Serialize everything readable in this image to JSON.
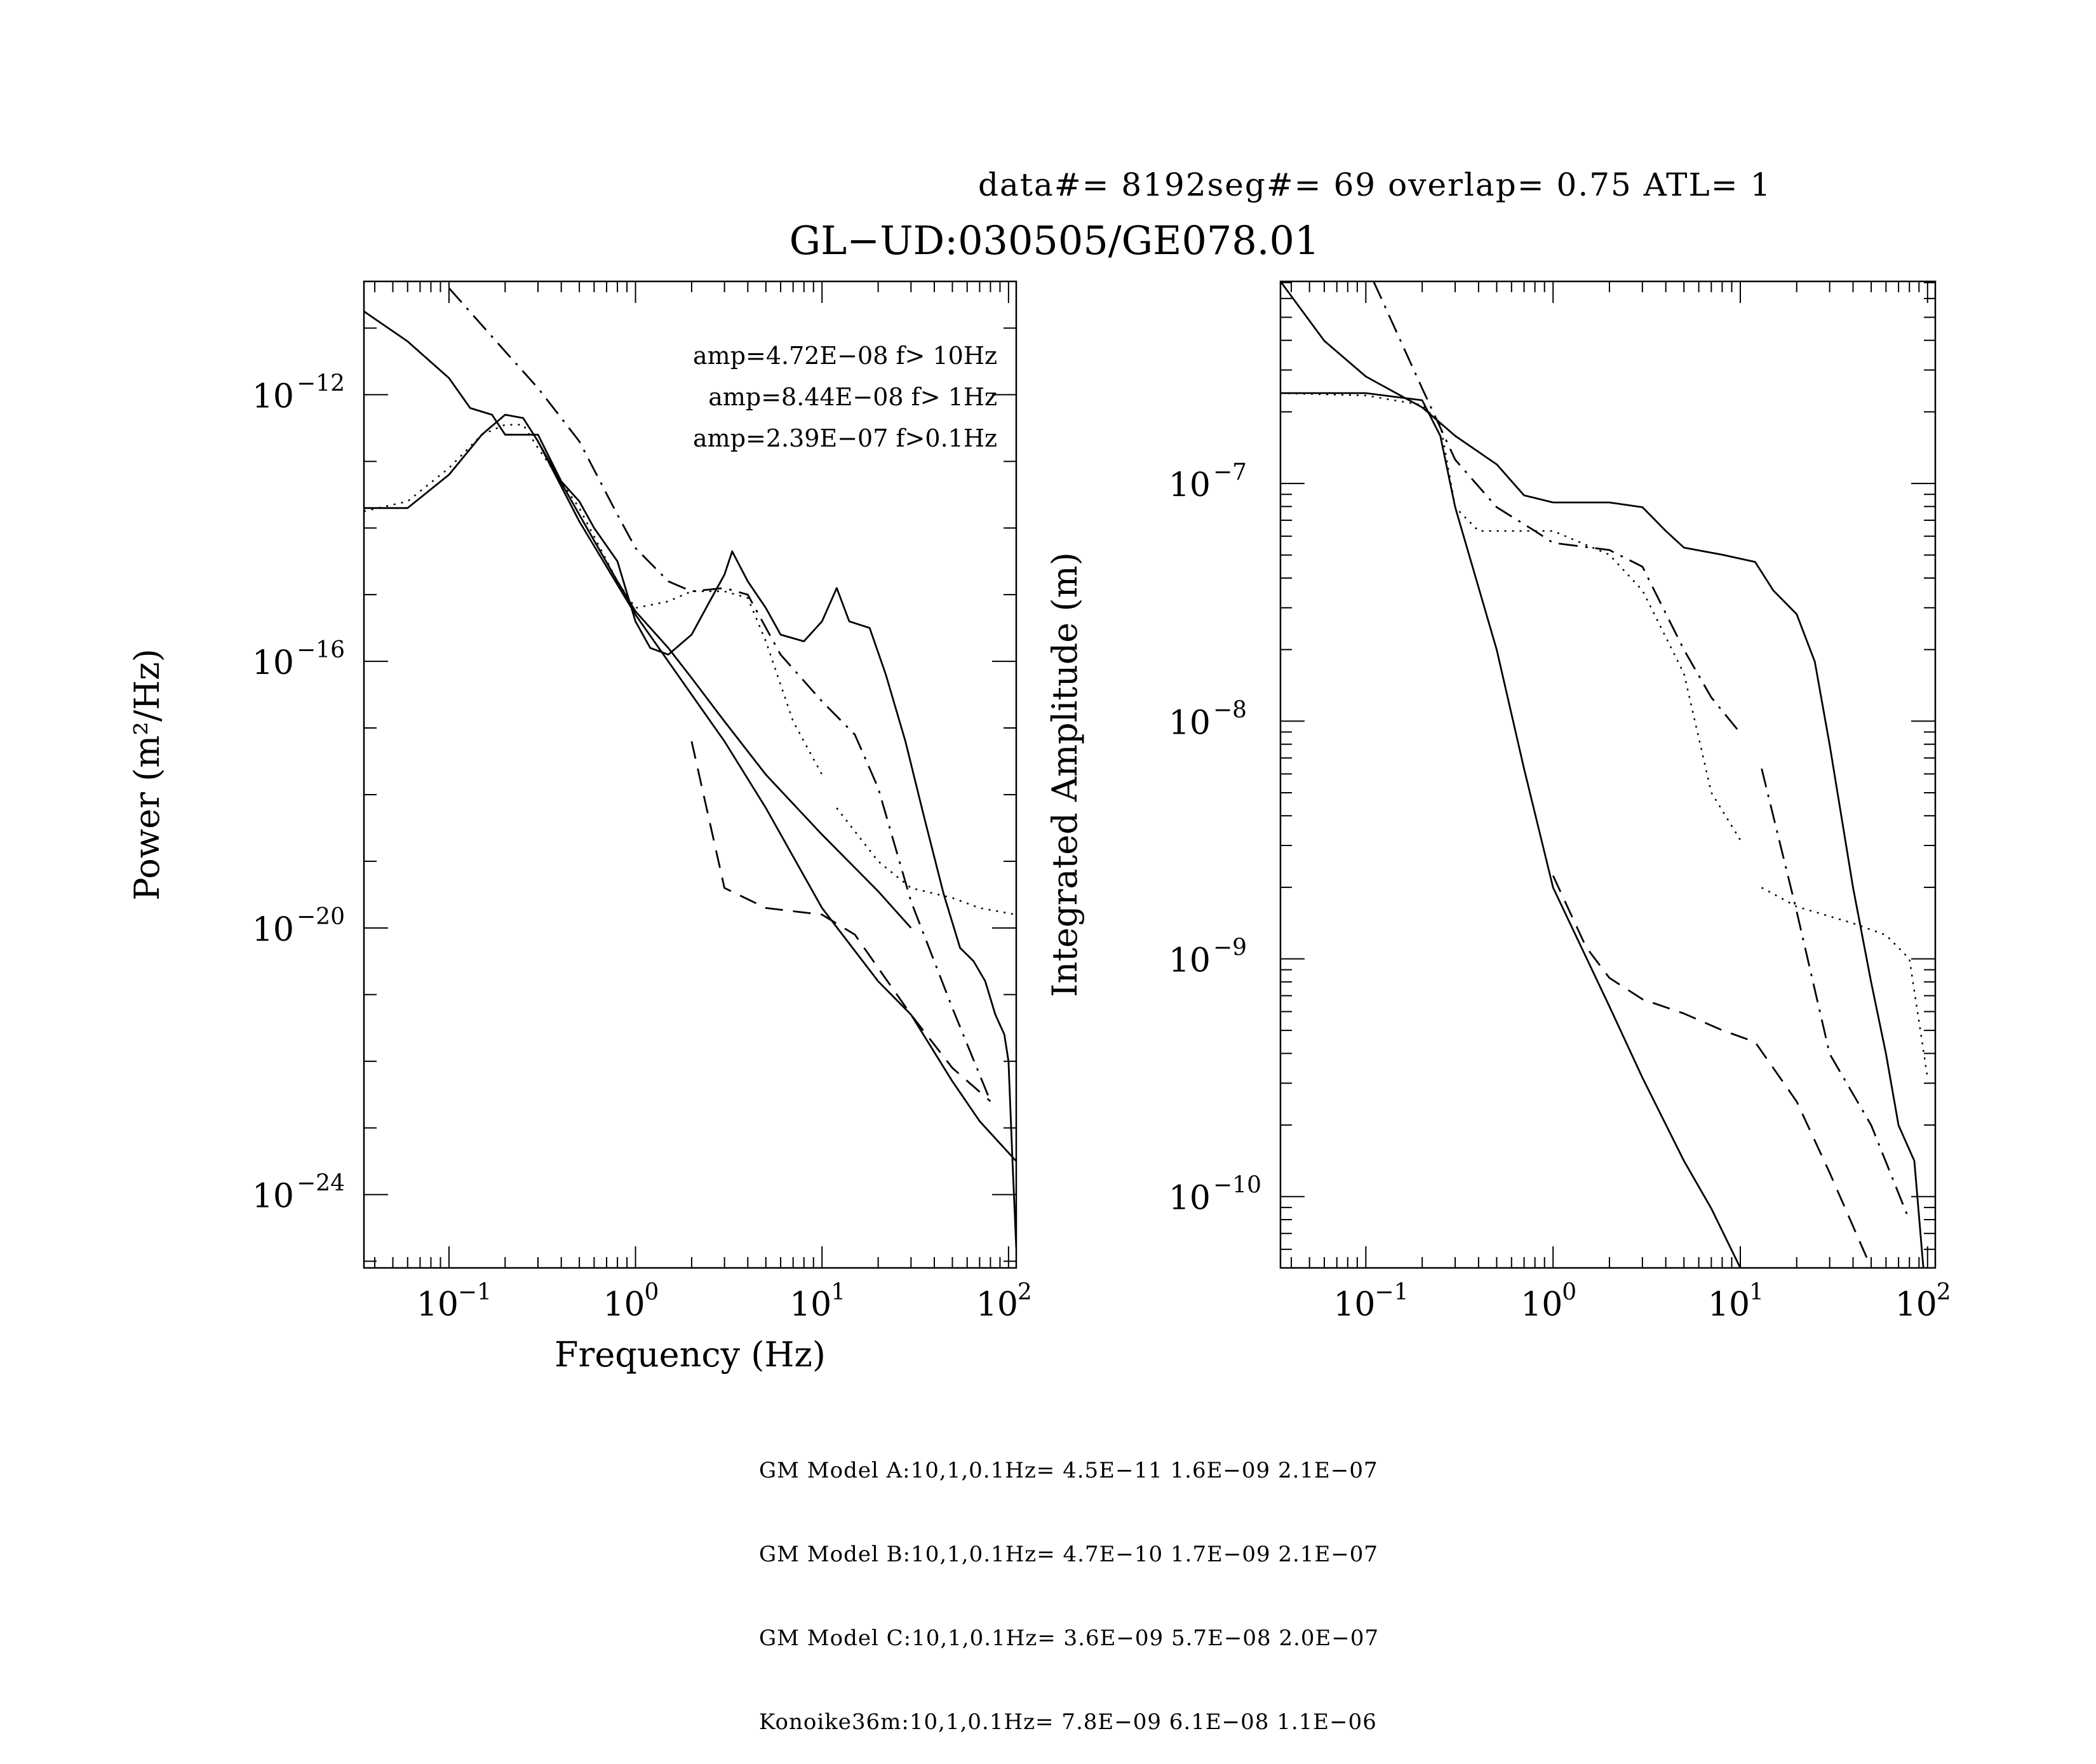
{
  "header": {
    "run_info": "data#= 8192seg#= 69 overlap=  0.75 ATL= 1",
    "title": "GL−UD:030505/GE078.01"
  },
  "footer": {
    "lines": [
      "GM Model A:10,1,0.1Hz= 4.5E−11 1.6E−09 2.1E−07",
      "GM Model B:10,1,0.1Hz= 4.7E−10 1.7E−09 2.1E−07",
      "GM Model C:10,1,0.1Hz= 3.6E−09 5.7E−08 2.0E−07",
      "Konoike36m:10,1,0.1Hz= 7.8E−09 6.1E−08 1.1E−06"
    ]
  },
  "chart_data": [
    {
      "type": "line",
      "xlabel": "Frequency (Hz)",
      "ylabel": "Power (m²/Hz)",
      "xscale": "log",
      "yscale": "log",
      "xlim": [
        0.035,
        110
      ],
      "ylim_log10": [
        -25.1,
        -10.3
      ],
      "xtick_exponents": [
        -1,
        0,
        1,
        2
      ],
      "ytick_exponents": [
        -12,
        -16,
        -20,
        -24
      ],
      "annotations": [
        "amp=4.72E−08 f> 10Hz",
        "amp=8.44E−08 f>  1Hz",
        "amp=2.39E−07 f>0.1Hz"
      ],
      "series": [
        {
          "style": "dotted",
          "points": [
            [
              0.035,
              -13.75
            ],
            [
              0.06,
              -13.6
            ],
            [
              0.1,
              -13.1
            ],
            [
              0.15,
              -12.6
            ],
            [
              0.2,
              -12.45
            ],
            [
              0.25,
              -12.45
            ],
            [
              0.3,
              -12.8
            ],
            [
              0.5,
              -13.7
            ],
            [
              0.8,
              -14.8
            ],
            [
              1.0,
              -15.2
            ],
            [
              1.5,
              -15.1
            ],
            [
              2.0,
              -14.95
            ],
            [
              3.0,
              -14.95
            ],
            [
              4.0,
              -15.05
            ],
            [
              5.0,
              -15.7
            ],
            [
              7.0,
              -16.9
            ],
            [
              10.0,
              -17.7
            ]
          ]
        },
        {
          "style": "dotted",
          "points": [
            [
              12.0,
              -18.2
            ],
            [
              20.0,
              -19.0
            ],
            [
              30.0,
              -19.4
            ],
            [
              50.0,
              -19.55
            ],
            [
              70.0,
              -19.7
            ],
            [
              110.0,
              -19.8
            ]
          ]
        },
        {
          "style": "solid",
          "points": [
            [
              0.035,
              -13.7
            ],
            [
              0.06,
              -13.7
            ],
            [
              0.1,
              -13.2
            ],
            [
              0.15,
              -12.6
            ],
            [
              0.2,
              -12.3
            ],
            [
              0.25,
              -12.35
            ],
            [
              0.3,
              -12.7
            ],
            [
              0.5,
              -13.8
            ],
            [
              0.8,
              -14.8
            ],
            [
              1.0,
              -15.25
            ],
            [
              1.5,
              -15.8
            ],
            [
              2.0,
              -16.25
            ],
            [
              3.0,
              -16.9
            ],
            [
              5.0,
              -17.7
            ],
            [
              10.0,
              -18.6
            ],
            [
              20.0,
              -19.45
            ],
            [
              30.0,
              -20.0
            ]
          ]
        },
        {
          "style": "dashed",
          "points": [
            [
              2.0,
              -17.2
            ],
            [
              3.0,
              -19.4
            ],
            [
              5.0,
              -19.7
            ],
            [
              10.0,
              -19.8
            ],
            [
              15.0,
              -20.1
            ],
            [
              20.0,
              -20.6
            ],
            [
              30.0,
              -21.3
            ],
            [
              50.0,
              -22.1
            ],
            [
              80.0,
              -22.6
            ]
          ]
        },
        {
          "style": "dashdot",
          "points": [
            [
              0.1,
              -10.4
            ],
            [
              0.2,
              -11.35
            ],
            [
              0.3,
              -11.9
            ],
            [
              0.5,
              -12.7
            ],
            [
              0.8,
              -13.8
            ],
            [
              1.0,
              -14.3
            ],
            [
              1.5,
              -14.8
            ],
            [
              2.0,
              -14.95
            ],
            [
              3.0,
              -14.9
            ],
            [
              4.0,
              -15.0
            ],
            [
              6.0,
              -15.9
            ],
            [
              10.0,
              -16.6
            ],
            [
              15.0,
              -17.1
            ],
            [
              20.0,
              -17.9
            ],
            [
              30.0,
              -19.6
            ],
            [
              50.0,
              -21.2
            ],
            [
              80.0,
              -22.6
            ]
          ]
        },
        {
          "style": "solid",
          "points": [
            [
              0.035,
              -10.75
            ],
            [
              0.06,
              -11.2
            ],
            [
              0.1,
              -11.75
            ],
            [
              0.13,
              -12.2
            ],
            [
              0.17,
              -12.3
            ],
            [
              0.2,
              -12.6
            ],
            [
              0.3,
              -12.6
            ],
            [
              0.4,
              -13.3
            ],
            [
              0.5,
              -13.6
            ],
            [
              0.6,
              -14.0
            ],
            [
              0.8,
              -14.5
            ],
            [
              1.0,
              -15.4
            ],
            [
              1.2,
              -15.8
            ],
            [
              1.5,
              -15.9
            ],
            [
              2.0,
              -15.6
            ],
            [
              2.5,
              -15.1
            ],
            [
              3.0,
              -14.7
            ],
            [
              3.3,
              -14.35
            ],
            [
              4.0,
              -14.8
            ],
            [
              5.0,
              -15.2
            ],
            [
              6.0,
              -15.6
            ],
            [
              8.0,
              -15.7
            ],
            [
              10.0,
              -15.4
            ],
            [
              12.0,
              -14.9
            ],
            [
              14.0,
              -15.4
            ],
            [
              18.0,
              -15.5
            ],
            [
              22.0,
              -16.2
            ],
            [
              28.0,
              -17.2
            ],
            [
              35.0,
              -18.3
            ],
            [
              45.0,
              -19.5
            ],
            [
              55.0,
              -20.3
            ],
            [
              65.0,
              -20.5
            ],
            [
              75.0,
              -20.8
            ],
            [
              85.0,
              -21.3
            ],
            [
              95.0,
              -21.6
            ],
            [
              100.0,
              -22.0
            ],
            [
              105.0,
              -23.5
            ],
            [
              110.0,
              -24.8
            ]
          ]
        },
        {
          "style": "solid",
          "points": [
            [
              0.3,
              -12.7
            ],
            [
              0.5,
              -13.9
            ],
            [
              1.0,
              -15.3
            ],
            [
              2.0,
              -16.5
            ],
            [
              3.0,
              -17.2
            ],
            [
              5.0,
              -18.2
            ],
            [
              10.0,
              -19.7
            ],
            [
              20.0,
              -20.8
            ],
            [
              30.0,
              -21.3
            ],
            [
              50.0,
              -22.3
            ],
            [
              70.0,
              -22.9
            ],
            [
              110.0,
              -23.5
            ]
          ]
        }
      ]
    },
    {
      "type": "line",
      "xlabel": "",
      "ylabel": "Integrated Amplitude (m)",
      "xscale": "log",
      "yscale": "log",
      "xlim": [
        0.035,
        110
      ],
      "ylim_log10": [
        -10.3,
        -6.15
      ],
      "xtick_exponents": [
        -1,
        0,
        1,
        2
      ],
      "ytick_exponents": [
        -7,
        -8,
        -9,
        -10
      ],
      "series": [
        {
          "style": "solid",
          "points": [
            [
              0.035,
              -6.15
            ],
            [
              0.06,
              -6.4
            ],
            [
              0.1,
              -6.55
            ],
            [
              0.2,
              -6.68
            ],
            [
              0.3,
              -6.8
            ],
            [
              0.5,
              -6.92
            ],
            [
              0.7,
              -7.05
            ],
            [
              1.0,
              -7.08
            ],
            [
              2.0,
              -7.08
            ],
            [
              3.0,
              -7.1
            ],
            [
              4.0,
              -7.2
            ],
            [
              5.0,
              -7.27
            ],
            [
              8.0,
              -7.3
            ],
            [
              12.0,
              -7.33
            ],
            [
              15.0,
              -7.45
            ],
            [
              20.0,
              -7.55
            ],
            [
              25.0,
              -7.75
            ],
            [
              30.0,
              -8.1
            ],
            [
              40.0,
              -8.7
            ],
            [
              50.0,
              -9.1
            ],
            [
              60.0,
              -9.4
            ],
            [
              70.0,
              -9.7
            ],
            [
              85.0,
              -9.85
            ],
            [
              95.0,
              -10.3
            ]
          ]
        },
        {
          "style": "dashdot",
          "points": [
            [
              0.11,
              -6.15
            ],
            [
              0.2,
              -6.6
            ],
            [
              0.3,
              -6.9
            ],
            [
              0.5,
              -7.1
            ],
            [
              0.8,
              -7.2
            ],
            [
              1.0,
              -7.25
            ],
            [
              2.0,
              -7.28
            ],
            [
              3.0,
              -7.35
            ],
            [
              5.0,
              -7.7
            ],
            [
              7.0,
              -7.9
            ],
            [
              10.0,
              -8.05
            ]
          ]
        },
        {
          "style": "dashdot",
          "points": [
            [
              13.0,
              -8.2
            ],
            [
              20.0,
              -8.8
            ],
            [
              30.0,
              -9.4
            ],
            [
              50.0,
              -9.7
            ],
            [
              80.0,
              -10.1
            ]
          ]
        },
        {
          "style": "dotted",
          "points": [
            [
              0.035,
              -6.62
            ],
            [
              0.1,
              -6.63
            ],
            [
              0.2,
              -6.67
            ],
            [
              0.25,
              -6.75
            ],
            [
              0.3,
              -7.1
            ],
            [
              0.4,
              -7.2
            ],
            [
              1.0,
              -7.2
            ],
            [
              2.0,
              -7.3
            ],
            [
              3.0,
              -7.45
            ],
            [
              5.0,
              -7.8
            ],
            [
              7.0,
              -8.3
            ],
            [
              10.0,
              -8.5
            ]
          ]
        },
        {
          "style": "dotted",
          "points": [
            [
              13.0,
              -8.7
            ],
            [
              20.0,
              -8.78
            ],
            [
              40.0,
              -8.85
            ],
            [
              60.0,
              -8.9
            ],
            [
              80.0,
              -9.0
            ],
            [
              100.0,
              -9.5
            ]
          ]
        },
        {
          "style": "dashed",
          "points": [
            [
              1.0,
              -8.65
            ],
            [
              1.5,
              -8.95
            ],
            [
              2.0,
              -9.08
            ],
            [
              3.0,
              -9.17
            ],
            [
              5.0,
              -9.23
            ],
            [
              8.0,
              -9.3
            ],
            [
              12.0,
              -9.35
            ],
            [
              20.0,
              -9.6
            ],
            [
              30.0,
              -9.9
            ],
            [
              50.0,
              -10.3
            ]
          ]
        },
        {
          "style": "solid",
          "points": [
            [
              0.035,
              -6.62
            ],
            [
              0.1,
              -6.62
            ],
            [
              0.2,
              -6.65
            ],
            [
              0.25,
              -6.8
            ],
            [
              0.3,
              -7.1
            ],
            [
              0.5,
              -7.7
            ],
            [
              0.7,
              -8.2
            ],
            [
              1.0,
              -8.7
            ],
            [
              2.0,
              -9.2
            ],
            [
              3.0,
              -9.5
            ],
            [
              5.0,
              -9.85
            ],
            [
              7.0,
              -10.05
            ],
            [
              10.0,
              -10.3
            ]
          ]
        }
      ]
    }
  ]
}
